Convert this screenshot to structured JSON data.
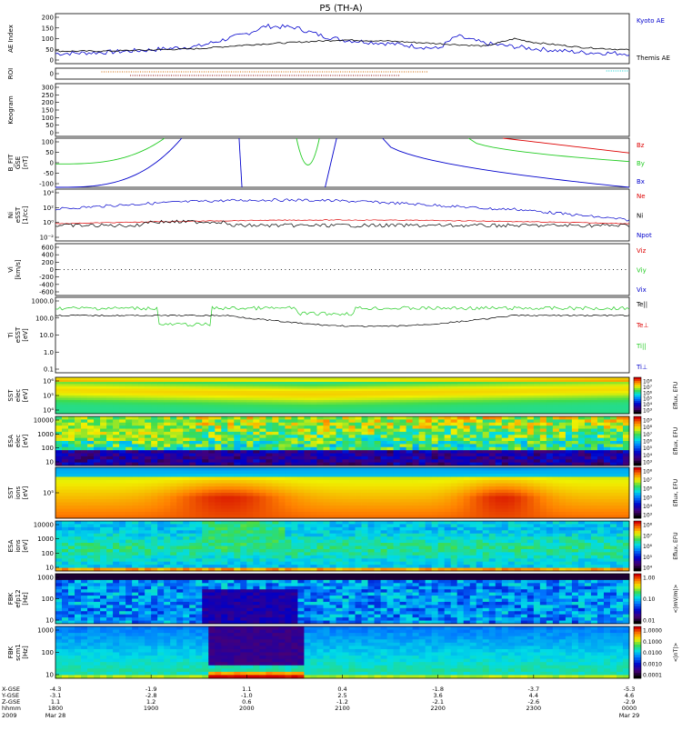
{
  "title": "P5 (TH-A)",
  "colors": {
    "kyoto": "#0000cc",
    "themis": "#000000",
    "red": "#dd0000",
    "green": "#22cc22",
    "blue": "#0000cc",
    "black": "#000000",
    "cyan": "#00cccc"
  },
  "panels": [
    {
      "id": "ae",
      "ylabel": [
        "AE Index"
      ],
      "ticks": [
        "200",
        "150",
        "100",
        "50",
        "0"
      ],
      "legend": [
        {
          "text": "Kyoto AE",
          "color": "#0000cc"
        },
        {
          "text": "Themis AE",
          "color": "#000000"
        }
      ]
    },
    {
      "id": "roi",
      "ylabel": [
        "ROI"
      ],
      "ticks": [
        "0"
      ],
      "legend": []
    },
    {
      "id": "keogram",
      "ylabel": [
        "Keogram"
      ],
      "ticks": [
        "300",
        "250",
        "200",
        "150",
        "100",
        "50",
        "0"
      ],
      "legend": []
    },
    {
      "id": "bfit",
      "ylabel": [
        "B_FIT",
        "GSE",
        "[nT]"
      ],
      "ticks": [
        "100",
        "50",
        "0",
        "-50",
        "-100"
      ],
      "legend": [
        {
          "text": "Bz",
          "color": "#dd0000"
        },
        {
          "text": "By",
          "color": "#22cc22"
        },
        {
          "text": "Bx",
          "color": "#0000cc"
        }
      ]
    },
    {
      "id": "ni",
      "ylabel": [
        "Ni",
        "eSST",
        "[1/cc]"
      ],
      "ticks": [
        "10⁴",
        "10²",
        "10⁰",
        "10⁻²"
      ],
      "legend": [
        {
          "text": "Ne",
          "color": "#dd0000"
        },
        {
          "text": "Ni",
          "color": "#000000"
        },
        {
          "text": "Npot",
          "color": "#0000cc"
        }
      ]
    },
    {
      "id": "vi",
      "ylabel": [
        "Vi",
        "[km/s]"
      ],
      "ticks": [
        "600",
        "400",
        "200",
        "0",
        "-200",
        "-400",
        "-600"
      ],
      "legend": [
        {
          "text": "Viz",
          "color": "#dd0000"
        },
        {
          "text": "Viy",
          "color": "#22cc22"
        },
        {
          "text": "Vix",
          "color": "#0000cc"
        }
      ]
    },
    {
      "id": "ti",
      "ylabel": [
        "Ti",
        "eSST",
        "[eV]"
      ],
      "ticks": [
        "1000.0",
        "100.0",
        "10.0",
        "1.0",
        "0.1"
      ],
      "legend": [
        {
          "text": "Te||",
          "color": "#000000"
        },
        {
          "text": "Te⊥",
          "color": "#dd0000"
        },
        {
          "text": "Ti||",
          "color": "#22cc22"
        },
        {
          "text": "Ti⊥",
          "color": "#0000cc"
        }
      ]
    },
    {
      "id": "sst_e",
      "ylabel": [
        "SST",
        "elec",
        "[eV]"
      ],
      "ticks": [
        "10⁶",
        "10⁵",
        "10⁴"
      ],
      "colorbar": [
        "10⁸",
        "10⁷",
        "10⁶",
        "10⁵",
        "10⁴",
        "10³"
      ],
      "cblabel": "Eflux, EFU"
    },
    {
      "id": "esa_e",
      "ylabel": [
        "ESA",
        "elec",
        "[eV]"
      ],
      "ticks": [
        "10000",
        "1000",
        "100",
        "10"
      ],
      "colorbar": [
        "10⁹",
        "10⁸",
        "10⁷",
        "10⁶",
        "10⁵",
        "10⁴",
        "10³"
      ],
      "cblabel": "Eflux, EFU"
    },
    {
      "id": "sst_i",
      "ylabel": [
        "SST",
        "ions",
        "[eV]"
      ],
      "ticks": [
        "10⁵"
      ],
      "colorbar": [
        "10⁸",
        "10⁷",
        "10⁶",
        "10⁵",
        "10⁴",
        "10³"
      ],
      "cblabel": "Eflux, EFU"
    },
    {
      "id": "esa_i",
      "ylabel": [
        "ESA",
        "ions",
        "[eV]"
      ],
      "ticks": [
        "10000",
        "1000",
        "100",
        "10"
      ],
      "colorbar": [
        "10⁸",
        "10⁷",
        "10⁶",
        "10⁵",
        "10⁴"
      ],
      "cblabel": "Eflux, EFU"
    },
    {
      "id": "fbk_e",
      "ylabel": [
        "FBK",
        "efp12",
        "[Hz]"
      ],
      "ticks": [
        "1000",
        "100",
        "10"
      ],
      "colorbar": [
        "1.00",
        "0.10",
        "0.01"
      ],
      "cblabel": "<|mV/m|>"
    },
    {
      "id": "fbk_b",
      "ylabel": [
        "FBK",
        "scm1",
        "[Hz]"
      ],
      "ticks": [
        "1000",
        "100",
        "10"
      ],
      "colorbar": [
        "1.0000",
        "0.1000",
        "0.0100",
        "0.0010",
        "0.0001"
      ],
      "cblabel": "<|nT|>"
    }
  ],
  "xaxis": {
    "row_labels": [
      "X-GSE",
      "Y-GSE",
      "Z-GSE",
      "hhmm",
      "2009"
    ],
    "cols": [
      {
        "v": [
          "-4.3",
          "-3.1",
          "1.1",
          "1800",
          "Mar 28"
        ]
      },
      {
        "v": [
          "-1.9",
          "-2.8",
          "1.2",
          "1900",
          ""
        ]
      },
      {
        "v": [
          "1.1",
          "-1.0",
          "0.6",
          "2000",
          ""
        ]
      },
      {
        "v": [
          "0.4",
          "2.5",
          "-1.2",
          "2100",
          ""
        ]
      },
      {
        "v": [
          "-1.8",
          "3.6",
          "-2.1",
          "2200",
          ""
        ]
      },
      {
        "v": [
          "-3.7",
          "4.4",
          "-2.6",
          "2300",
          ""
        ]
      },
      {
        "v": [
          "-5.3",
          "4.6",
          "-2.9",
          "0000",
          "Mar 29"
        ]
      }
    ]
  },
  "chart_data": {
    "type": "line",
    "title": "P5 (TH-A)",
    "x_range": [
      "2009-03-28 18:00",
      "2009-03-29 00:00"
    ],
    "series": [
      {
        "name": "Kyoto AE",
        "x": [
          0,
          0.5,
          1,
          1.5,
          2,
          2.2,
          2.5,
          2.8,
          3,
          3.5,
          4,
          4.2,
          4.5,
          5,
          5.5,
          6
        ],
        "values": [
          40,
          45,
          55,
          70,
          120,
          150,
          145,
          110,
          95,
          80,
          60,
          110,
          80,
          60,
          45,
          40
        ]
      },
      {
        "name": "Themis AE",
        "x": [
          0,
          0.5,
          1,
          1.5,
          2,
          2.5,
          3,
          3.5,
          4,
          4.5,
          4.8,
          5,
          5.5,
          6
        ],
        "values": [
          50,
          50,
          55,
          60,
          75,
          85,
          95,
          90,
          80,
          70,
          100,
          85,
          65,
          55
        ]
      }
    ]
  }
}
